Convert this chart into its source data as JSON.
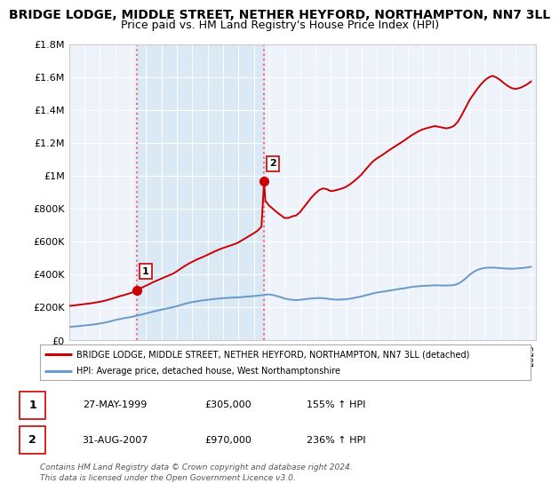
{
  "title": "BRIDGE LODGE, MIDDLE STREET, NETHER HEYFORD, NORTHAMPTON, NN7 3LL",
  "subtitle": "Price paid vs. HM Land Registry's House Price Index (HPI)",
  "title_fontsize": 10,
  "subtitle_fontsize": 9,
  "bg_color": "#ffffff",
  "plot_bg_color": "#eef2fa",
  "grid_color": "#ffffff",
  "ylim": [
    0,
    1800000
  ],
  "yticks": [
    0,
    200000,
    400000,
    600000,
    800000,
    1000000,
    1200000,
    1400000,
    1600000,
    1800000
  ],
  "ytick_labels": [
    "£0",
    "£200K",
    "£400K",
    "£600K",
    "£800K",
    "£1M",
    "£1.2M",
    "£1.4M",
    "£1.6M",
    "£1.8M"
  ],
  "xlim_start": 1995.0,
  "xlim_end": 2025.3,
  "sale1_x": 1999.4,
  "sale1_y": 305000,
  "sale1_label": "1",
  "sale2_x": 2007.67,
  "sale2_y": 970000,
  "sale2_label": "2",
  "sale_dot_color": "#cc0000",
  "vline_color": "#ff6666",
  "red_line_color": "#cc0000",
  "blue_line_color": "#6699cc",
  "shaded_region_color": "#d8e8f5",
  "legend_red_label": "BRIDGE LODGE, MIDDLE STREET, NETHER HEYFORD, NORTHAMPTON, NN7 3LL (detached)",
  "legend_blue_label": "HPI: Average price, detached house, West Northamptonshire",
  "table_row1": [
    "1",
    "27-MAY-1999",
    "£305,000",
    "155% ↑ HPI"
  ],
  "table_row2": [
    "2",
    "31-AUG-2007",
    "£970,000",
    "236% ↑ HPI"
  ],
  "footer1": "Contains HM Land Registry data © Crown copyright and database right 2024.",
  "footer2": "This data is licensed under the Open Government Licence v3.0.",
  "red_hpi_years": [
    1995.0,
    1995.25,
    1995.5,
    1995.75,
    1996.0,
    1996.25,
    1996.5,
    1996.75,
    1997.0,
    1997.25,
    1997.5,
    1997.75,
    1998.0,
    1998.25,
    1998.5,
    1998.75,
    1999.0,
    1999.25,
    1999.4,
    1999.5,
    1999.75,
    2000.0,
    2000.25,
    2000.5,
    2000.75,
    2001.0,
    2001.25,
    2001.5,
    2001.75,
    2002.0,
    2002.25,
    2002.5,
    2002.75,
    2003.0,
    2003.25,
    2003.5,
    2003.75,
    2004.0,
    2004.25,
    2004.5,
    2004.75,
    2005.0,
    2005.25,
    2005.5,
    2005.75,
    2006.0,
    2006.25,
    2006.5,
    2006.75,
    2007.0,
    2007.25,
    2007.5,
    2007.67,
    2007.75,
    2008.0,
    2008.25,
    2008.5,
    2008.75,
    2009.0,
    2009.25,
    2009.5,
    2009.75,
    2010.0,
    2010.25,
    2010.5,
    2010.75,
    2011.0,
    2011.25,
    2011.5,
    2011.75,
    2012.0,
    2012.25,
    2012.5,
    2012.75,
    2013.0,
    2013.25,
    2013.5,
    2013.75,
    2014.0,
    2014.25,
    2014.5,
    2014.75,
    2015.0,
    2015.25,
    2015.5,
    2015.75,
    2016.0,
    2016.25,
    2016.5,
    2016.75,
    2017.0,
    2017.25,
    2017.5,
    2017.75,
    2018.0,
    2018.25,
    2018.5,
    2018.75,
    2019.0,
    2019.25,
    2019.5,
    2019.75,
    2020.0,
    2020.25,
    2020.5,
    2020.75,
    2021.0,
    2021.25,
    2021.5,
    2021.75,
    2022.0,
    2022.25,
    2022.5,
    2022.75,
    2023.0,
    2023.25,
    2023.5,
    2023.75,
    2024.0,
    2024.25,
    2024.5,
    2024.75,
    2025.0
  ],
  "red_hpi_values": [
    210000,
    212000,
    215000,
    218000,
    221000,
    224000,
    227000,
    231000,
    235000,
    240000,
    246000,
    253000,
    260000,
    268000,
    274000,
    281000,
    288000,
    296000,
    305000,
    312000,
    322000,
    333000,
    344000,
    356000,
    366000,
    376000,
    386000,
    396000,
    406000,
    420000,
    436000,
    452000,
    466000,
    478000,
    490000,
    500000,
    510000,
    521000,
    532000,
    543000,
    553000,
    562000,
    570000,
    578000,
    586000,
    596000,
    610000,
    624000,
    638000,
    652000,
    668000,
    692000,
    970000,
    850000,
    820000,
    800000,
    780000,
    762000,
    745000,
    745000,
    755000,
    760000,
    780000,
    810000,
    840000,
    870000,
    895000,
    915000,
    925000,
    920000,
    908000,
    912000,
    918000,
    925000,
    935000,
    950000,
    968000,
    988000,
    1010000,
    1038000,
    1065000,
    1090000,
    1108000,
    1122000,
    1138000,
    1155000,
    1170000,
    1185000,
    1200000,
    1215000,
    1232000,
    1248000,
    1262000,
    1275000,
    1285000,
    1292000,
    1298000,
    1304000,
    1300000,
    1295000,
    1290000,
    1295000,
    1305000,
    1330000,
    1370000,
    1415000,
    1460000,
    1495000,
    1528000,
    1558000,
    1582000,
    1600000,
    1610000,
    1600000,
    1585000,
    1565000,
    1548000,
    1535000,
    1530000,
    1535000,
    1545000,
    1558000,
    1575000
  ],
  "blue_hpi_years": [
    1995.0,
    1995.25,
    1995.5,
    1995.75,
    1996.0,
    1996.25,
    1996.5,
    1996.75,
    1997.0,
    1997.25,
    1997.5,
    1997.75,
    1998.0,
    1998.25,
    1998.5,
    1998.75,
    1999.0,
    1999.25,
    1999.5,
    1999.75,
    2000.0,
    2000.25,
    2000.5,
    2000.75,
    2001.0,
    2001.25,
    2001.5,
    2001.75,
    2002.0,
    2002.25,
    2002.5,
    2002.75,
    2003.0,
    2003.25,
    2003.5,
    2003.75,
    2004.0,
    2004.25,
    2004.5,
    2004.75,
    2005.0,
    2005.25,
    2005.5,
    2005.75,
    2006.0,
    2006.25,
    2006.5,
    2006.75,
    2007.0,
    2007.25,
    2007.5,
    2007.75,
    2008.0,
    2008.25,
    2008.5,
    2008.75,
    2009.0,
    2009.25,
    2009.5,
    2009.75,
    2010.0,
    2010.25,
    2010.5,
    2010.75,
    2011.0,
    2011.25,
    2011.5,
    2011.75,
    2012.0,
    2012.25,
    2012.5,
    2012.75,
    2013.0,
    2013.25,
    2013.5,
    2013.75,
    2014.0,
    2014.25,
    2014.5,
    2014.75,
    2015.0,
    2015.25,
    2015.5,
    2015.75,
    2016.0,
    2016.25,
    2016.5,
    2016.75,
    2017.0,
    2017.25,
    2017.5,
    2017.75,
    2018.0,
    2018.25,
    2018.5,
    2018.75,
    2019.0,
    2019.25,
    2019.5,
    2019.75,
    2020.0,
    2020.25,
    2020.5,
    2020.75,
    2021.0,
    2021.25,
    2021.5,
    2021.75,
    2022.0,
    2022.25,
    2022.5,
    2022.75,
    2023.0,
    2023.25,
    2023.5,
    2023.75,
    2024.0,
    2024.25,
    2024.5,
    2024.75,
    2025.0
  ],
  "blue_hpi_values": [
    82000,
    84000,
    86000,
    88000,
    91000,
    93000,
    96000,
    99000,
    103000,
    107000,
    112000,
    118000,
    124000,
    129000,
    134000,
    138000,
    142000,
    147000,
    153000,
    158000,
    164000,
    170000,
    176000,
    182000,
    187000,
    192000,
    197000,
    202000,
    208000,
    215000,
    222000,
    228000,
    233000,
    237000,
    241000,
    244000,
    247000,
    250000,
    253000,
    255000,
    257000,
    258000,
    260000,
    261000,
    262000,
    264000,
    266000,
    268000,
    270000,
    272000,
    275000,
    278000,
    280000,
    276000,
    270000,
    263000,
    255000,
    250000,
    247000,
    245000,
    247000,
    250000,
    253000,
    255000,
    257000,
    258000,
    257000,
    254000,
    251000,
    249000,
    248000,
    249000,
    251000,
    254000,
    258000,
    263000,
    268000,
    274000,
    280000,
    286000,
    291000,
    295000,
    298000,
    302000,
    306000,
    310000,
    314000,
    317000,
    321000,
    325000,
    328000,
    330000,
    332000,
    333000,
    334000,
    335000,
    335000,
    334000,
    334000,
    335000,
    337000,
    344000,
    358000,
    376000,
    398000,
    415000,
    428000,
    436000,
    441000,
    443000,
    443000,
    442000,
    440000,
    438000,
    437000,
    436000,
    437000,
    439000,
    441000,
    444000,
    448000
  ]
}
